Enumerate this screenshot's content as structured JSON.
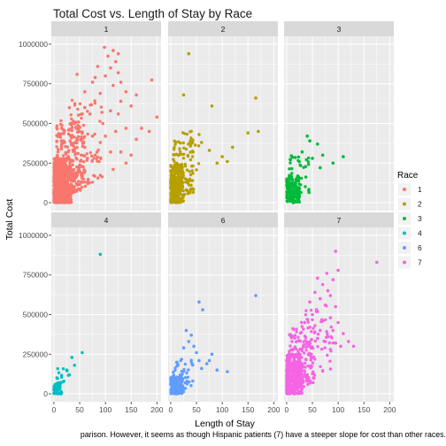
{
  "title": "Total Cost vs. Length of Stay by Race",
  "caption": "parison. However, it seems as though Hispanic patients (7) have a steeper slope for cost than other races.",
  "chart_data": {
    "type": "scatter",
    "title": "Total Cost vs. Length of Stay by Race",
    "xlabel": "Length of Stay",
    "ylabel": "Total Cost",
    "xlim": [
      -5,
      208
    ],
    "ylim": [
      -50000,
      1050000
    ],
    "xticks": [
      0,
      50,
      100,
      150,
      200
    ],
    "xtick_labels": [
      "0",
      "50",
      "100",
      "150",
      "200"
    ],
    "yticks": [
      0,
      250000,
      500000,
      750000,
      1000000
    ],
    "ytick_labels": [
      "0",
      "250000",
      "500000",
      "750000",
      "1000000"
    ],
    "grid": true,
    "facet_by": "Race",
    "legend": {
      "title": "Race",
      "position": "right"
    },
    "series": [
      {
        "name": "1",
        "color": "#F8766D",
        "points": [
          [
            60,
            600000
          ],
          [
            98,
            980000
          ],
          [
            115,
            960000
          ],
          [
            125,
            940000
          ],
          [
            105,
            925000
          ],
          [
            120,
            890000
          ],
          [
            85,
            860000
          ],
          [
            110,
            850000
          ],
          [
            125,
            820000
          ],
          [
            45,
            810000
          ],
          [
            80,
            790000
          ],
          [
            100,
            800000
          ],
          [
            75,
            760000
          ],
          [
            115,
            740000
          ],
          [
            130,
            760000
          ],
          [
            190,
            775000
          ],
          [
            60,
            700000
          ],
          [
            90,
            690000
          ],
          [
            140,
            700000
          ],
          [
            160,
            680000
          ],
          [
            130,
            640000
          ],
          [
            150,
            610000
          ],
          [
            110,
            580000
          ],
          [
            125,
            560000
          ],
          [
            70,
            560000
          ],
          [
            170,
            470000
          ],
          [
            185,
            450000
          ],
          [
            200,
            540000
          ],
          [
            140,
            470000
          ],
          [
            160,
            400000
          ],
          [
            100,
            420000
          ],
          [
            55,
            560000
          ],
          [
            30,
            600000
          ],
          [
            95,
            500000
          ],
          [
            120,
            450000
          ],
          [
            90,
            380000
          ],
          [
            110,
            320000
          ],
          [
            130,
            320000
          ],
          [
            150,
            300000
          ],
          [
            80,
            300000
          ],
          [
            65,
            280000
          ],
          [
            140,
            250000
          ],
          [
            115,
            210000
          ],
          [
            50,
            450000
          ],
          [
            40,
            500000
          ],
          [
            75,
            420000
          ],
          [
            60,
            350000
          ]
        ],
        "clusters": [
          {
            "x": [
              0,
              35
            ],
            "y": [
              0,
              280000
            ],
            "n": 500
          },
          {
            "x": [
              5,
              60
            ],
            "y": [
              80000,
              520000
            ],
            "n": 240
          },
          {
            "x": [
              30,
              95
            ],
            "y": [
              150000,
              650000
            ],
            "n": 90
          }
        ]
      },
      {
        "name": "2",
        "color": "#B79F00",
        "points": [
          [
            35,
            940000
          ],
          [
            80,
            610000
          ],
          [
            165,
            660000
          ],
          [
            170,
            450000
          ],
          [
            150,
            440000
          ],
          [
            120,
            350000
          ],
          [
            100,
            290000
          ],
          [
            75,
            330000
          ],
          [
            55,
            430000
          ],
          [
            25,
            680000
          ],
          [
            90,
            250000
          ],
          [
            60,
            380000
          ],
          [
            40,
            450000
          ],
          [
            110,
            260000
          ]
        ],
        "clusters": [
          {
            "x": [
              0,
              25
            ],
            "y": [
              0,
              240000
            ],
            "n": 260
          },
          {
            "x": [
              5,
              45
            ],
            "y": [
              60000,
              400000
            ],
            "n": 90
          },
          {
            "x": [
              20,
              65
            ],
            "y": [
              150000,
              450000
            ],
            "n": 25
          }
        ]
      },
      {
        "name": "3",
        "color": "#00BA38",
        "points": [
          [
            40,
            420000
          ],
          [
            45,
            390000
          ],
          [
            60,
            370000
          ],
          [
            110,
            290000
          ],
          [
            90,
            250000
          ],
          [
            70,
            300000
          ],
          [
            50,
            280000
          ],
          [
            30,
            320000
          ],
          [
            65,
            220000
          ]
        ],
        "clusters": [
          {
            "x": [
              0,
              25
            ],
            "y": [
              0,
              170000
            ],
            "n": 140
          },
          {
            "x": [
              5,
              45
            ],
            "y": [
              60000,
              300000
            ],
            "n": 40
          }
        ]
      },
      {
        "name": "4",
        "color": "#00BFC4",
        "points": [
          [
            90,
            880000
          ],
          [
            55,
            260000
          ],
          [
            35,
            230000
          ],
          [
            25,
            150000
          ],
          [
            40,
            180000
          ],
          [
            30,
            120000
          ]
        ],
        "clusters": [
          {
            "x": [
              0,
              15
            ],
            "y": [
              0,
              70000
            ],
            "n": 60
          },
          {
            "x": [
              5,
              30
            ],
            "y": [
              30000,
              160000
            ],
            "n": 15
          }
        ]
      },
      {
        "name": "6",
        "color": "#619CFF",
        "points": [
          [
            165,
            620000
          ],
          [
            55,
            580000
          ],
          [
            62,
            530000
          ],
          [
            30,
            400000
          ],
          [
            40,
            370000
          ],
          [
            35,
            330000
          ],
          [
            45,
            300000
          ],
          [
            25,
            290000
          ],
          [
            70,
            190000
          ],
          [
            55,
            210000
          ],
          [
            60,
            160000
          ],
          [
            80,
            250000
          ],
          [
            90,
            150000
          ],
          [
            110,
            140000
          ],
          [
            50,
            260000
          ],
          [
            75,
            210000
          ]
        ],
        "clusters": [
          {
            "x": [
              0,
              25
            ],
            "y": [
              0,
              110000
            ],
            "n": 180
          },
          {
            "x": [
              5,
              45
            ],
            "y": [
              40000,
              220000
            ],
            "n": 50
          }
        ]
      },
      {
        "name": "7",
        "color": "#F564E3",
        "points": [
          [
            95,
            900000
          ],
          [
            175,
            830000
          ],
          [
            100,
            780000
          ],
          [
            78,
            760000
          ],
          [
            90,
            720000
          ],
          [
            60,
            730000
          ],
          [
            70,
            690000
          ],
          [
            80,
            650000
          ],
          [
            55,
            640000
          ],
          [
            65,
            600000
          ],
          [
            85,
            620000
          ],
          [
            45,
            580000
          ],
          [
            75,
            560000
          ],
          [
            95,
            550000
          ],
          [
            60,
            520000
          ],
          [
            50,
            500000
          ],
          [
            85,
            480000
          ],
          [
            40,
            470000
          ],
          [
            70,
            460000
          ],
          [
            100,
            450000
          ],
          [
            55,
            430000
          ],
          [
            90,
            400000
          ],
          [
            65,
            400000
          ],
          [
            110,
            380000
          ],
          [
            80,
            360000
          ],
          [
            120,
            330000
          ],
          [
            45,
            420000
          ],
          [
            35,
            450000
          ],
          [
            105,
            300000
          ],
          [
            95,
            320000
          ],
          [
            130,
            300000
          ],
          [
            75,
            330000
          ],
          [
            60,
            350000
          ],
          [
            85,
            280000
          ]
        ],
        "clusters": [
          {
            "x": [
              0,
              30
            ],
            "y": [
              0,
              250000
            ],
            "n": 380
          },
          {
            "x": [
              5,
              55
            ],
            "y": [
              60000,
              420000
            ],
            "n": 160
          },
          {
            "x": [
              20,
              90
            ],
            "y": [
              150000,
              560000
            ],
            "n": 70
          }
        ]
      }
    ]
  }
}
